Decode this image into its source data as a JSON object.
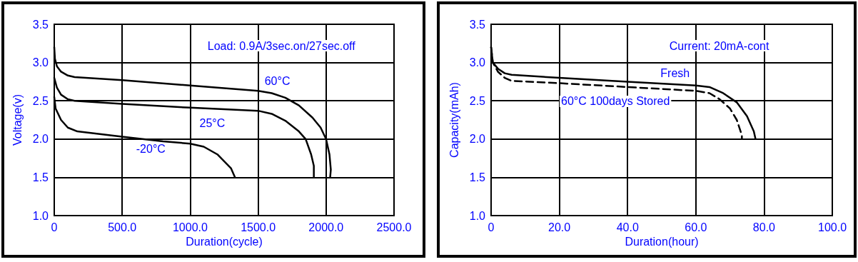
{
  "chart_data": [
    {
      "type": "line",
      "xlabel": "Duration(cycle)",
      "ylabel": "Voltage(v)",
      "xlim": [
        0,
        2500
      ],
      "ylim": [
        1.0,
        3.5
      ],
      "xticks": [
        0,
        {
          "value": 500,
          "label": "500.0"
        },
        {
          "value": 1000,
          "label": "1000.0"
        },
        {
          "value": 1500,
          "label": "1500.0"
        },
        {
          "value": 2000,
          "label": "2000.0"
        },
        {
          "value": 2500,
          "label": "2500.0"
        }
      ],
      "yticks": [
        {
          "value": 1,
          "label": "1.0"
        },
        1.5,
        {
          "value": 2,
          "label": "2.0"
        },
        2.5,
        {
          "value": 3,
          "label": "3.0"
        },
        3.5
      ],
      "grid": true,
      "marker": "none",
      "line_style": "solid",
      "annotations": [
        "Load: 0.9A/3sec.on/27sec.off"
      ],
      "series": [
        {
          "name": "60°C",
          "color": "#000000",
          "x": [
            0,
            5,
            20,
            50,
            100,
            150,
            500,
            1000,
            1500,
            1600,
            1700,
            1800,
            1900,
            1960,
            2000,
            2025,
            2035,
            2030
          ],
          "values": [
            3.2,
            3.05,
            2.95,
            2.88,
            2.83,
            2.81,
            2.77,
            2.7,
            2.63,
            2.6,
            2.54,
            2.44,
            2.28,
            2.15,
            2.0,
            1.8,
            1.6,
            1.5
          ]
        },
        {
          "name": "25°C",
          "color": "#000000",
          "x": [
            0,
            20,
            50,
            100,
            150,
            500,
            1000,
            1500,
            1600,
            1700,
            1800,
            1850,
            1890,
            1910,
            1910
          ],
          "values": [
            2.8,
            2.67,
            2.58,
            2.52,
            2.5,
            2.46,
            2.41,
            2.37,
            2.33,
            2.24,
            2.1,
            2.0,
            1.8,
            1.65,
            1.5
          ]
        },
        {
          "name": "-20°C",
          "color": "#000000",
          "x": [
            0,
            10,
            50,
            100,
            170,
            500,
            800,
            1000,
            1100,
            1200,
            1300,
            1330
          ],
          "values": [
            2.55,
            2.4,
            2.25,
            2.15,
            2.1,
            2.03,
            1.97,
            1.94,
            1.9,
            1.8,
            1.62,
            1.5
          ]
        }
      ]
    },
    {
      "type": "line",
      "xlabel": "Duration(hour)",
      "ylabel": "Capacity(mAh)",
      "xlim": [
        0,
        100
      ],
      "ylim": [
        1.0,
        3.5
      ],
      "xticks": [
        0,
        {
          "value": 20,
          "label": "20.0"
        },
        {
          "value": 40,
          "label": "40.0"
        },
        {
          "value": 60,
          "label": "60.0"
        },
        {
          "value": 80,
          "label": "80.0"
        },
        {
          "value": 100,
          "label": "100.0"
        }
      ],
      "yticks": [
        {
          "value": 1,
          "label": "1.0"
        },
        1.5,
        {
          "value": 2,
          "label": "2.0"
        },
        2.5,
        {
          "value": 3,
          "label": "3.0"
        },
        3.5
      ],
      "grid": true,
      "marker": "none",
      "annotations": [
        "Current: 20mA-cont"
      ],
      "series": [
        {
          "name": "Fresh",
          "color": "#000000",
          "line_style": "solid",
          "x": [
            0,
            0.5,
            2,
            4,
            6,
            20,
            40,
            60,
            64,
            68,
            72,
            75,
            77,
            77.5
          ],
          "values": [
            3.2,
            3.0,
            2.92,
            2.86,
            2.84,
            2.8,
            2.75,
            2.7,
            2.68,
            2.6,
            2.48,
            2.3,
            2.1,
            2.0
          ]
        },
        {
          "name": "60°C 100days Stored",
          "color": "#000000",
          "line_style": "dashed",
          "x": [
            0,
            0.5,
            2,
            4,
            6,
            20,
            40,
            60,
            64,
            67,
            70,
            72,
            73.5,
            73.5
          ],
          "values": [
            3.2,
            3.0,
            2.88,
            2.8,
            2.76,
            2.73,
            2.68,
            2.63,
            2.6,
            2.52,
            2.4,
            2.25,
            2.05,
            2.0
          ]
        }
      ]
    }
  ]
}
